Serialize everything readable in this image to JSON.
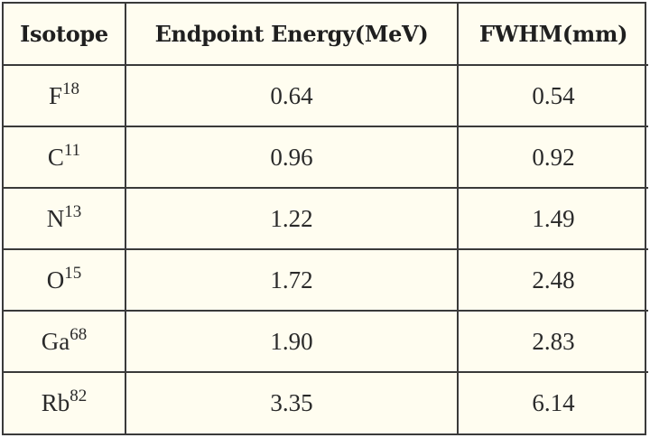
{
  "table": {
    "headers": [
      "Isotope",
      "Endpoint Energy(MeV)",
      "FWHM(mm)"
    ],
    "rows": [
      {
        "symbol": "F",
        "mass": "18",
        "energy": "0.64",
        "fwhm": "0.54"
      },
      {
        "symbol": "C",
        "mass": "11",
        "energy": "0.96",
        "fwhm": "0.92"
      },
      {
        "symbol": "N",
        "mass": "13",
        "energy": "1.22",
        "fwhm": "1.49"
      },
      {
        "symbol": "O",
        "mass": "15",
        "energy": "1.72",
        "fwhm": "2.48"
      },
      {
        "symbol": "Ga",
        "mass": "68",
        "energy": "1.90",
        "fwhm": "2.83"
      },
      {
        "symbol": "Rb",
        "mass": "82",
        "energy": "3.35",
        "fwhm": "6.14"
      }
    ]
  }
}
